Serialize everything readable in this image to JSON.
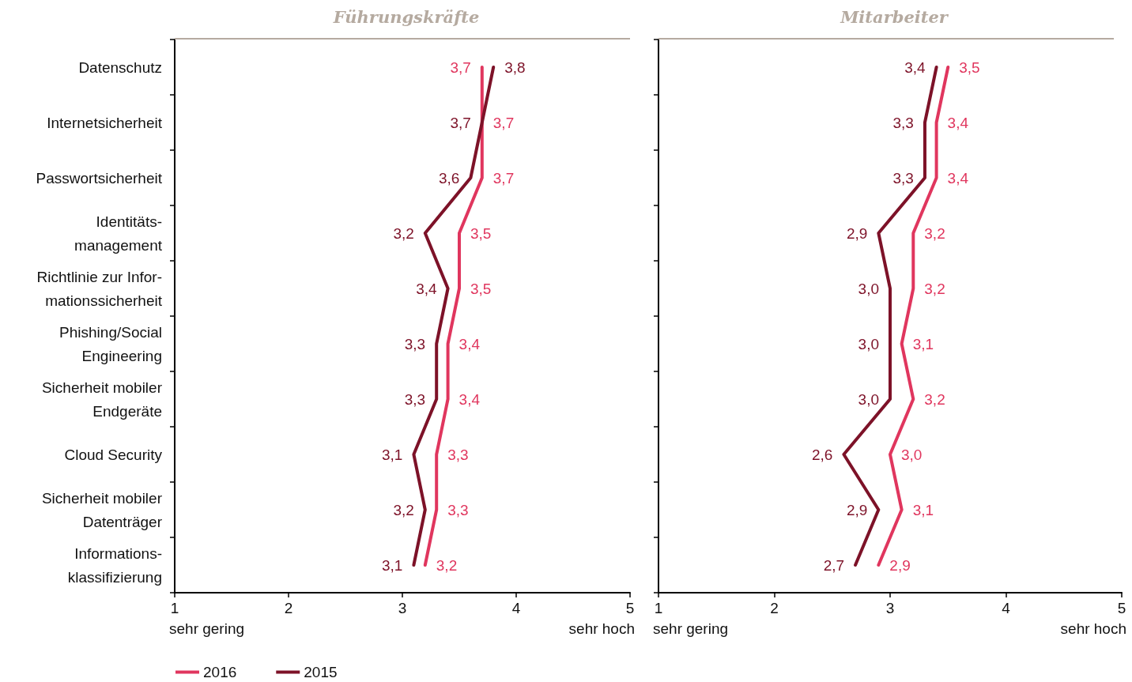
{
  "chart_data": [
    {
      "type": "line",
      "orientation": "horizontal",
      "title": "Führungskräfte",
      "categories": [
        "Datenschutz",
        "Internetsicherheit",
        "Passwortsicherheit",
        "Identitäts-\nmanagement",
        "Richtlinie zur Infor-\nmationssicherheit",
        "Phishing/Social\nEngineering",
        "Sicherheit mobiler\nEndgeräte",
        "Cloud Security",
        "Sicherheit mobiler\nDatenträger",
        "Informations-\nklassifizierung"
      ],
      "series": [
        {
          "name": "2016",
          "color": "#e0365e",
          "values": [
            3.7,
            3.7,
            3.7,
            3.5,
            3.5,
            3.4,
            3.4,
            3.3,
            3.3,
            3.2
          ],
          "value_labels": [
            "3,7",
            "3,7",
            "3,7",
            "3,5",
            "3,5",
            "3,4",
            "3,4",
            "3,3",
            "3,3",
            "3,2"
          ]
        },
        {
          "name": "2015",
          "color": "#7d1228",
          "values": [
            3.8,
            3.7,
            3.6,
            3.2,
            3.4,
            3.3,
            3.3,
            3.1,
            3.2,
            3.1
          ],
          "value_labels": [
            "3,8",
            "3,7",
            "3,6",
            "3,2",
            "3,4",
            "3,3",
            "3,3",
            "3,1",
            "3,2",
            "3,1"
          ]
        }
      ],
      "xlim": [
        1,
        5
      ],
      "xticks": [
        1,
        2,
        3,
        4,
        5
      ],
      "annotations": [
        "sehr gering",
        "sehr hoch"
      ],
      "legend": "bottom left",
      "grid": false,
      "marker": "none",
      "line_style": "solid"
    },
    {
      "type": "line",
      "orientation": "horizontal",
      "title": "Mitarbeiter",
      "categories": [
        null,
        null,
        null,
        null,
        null,
        null,
        null,
        null,
        null,
        null
      ],
      "series": [
        {
          "name": "2016",
          "color": "#e0365e",
          "values": [
            3.5,
            3.4,
            3.4,
            3.2,
            3.2,
            3.1,
            3.2,
            3.0,
            3.1,
            2.9
          ],
          "value_labels": [
            "3,5",
            "3,4",
            "3,4",
            "3,2",
            "3,2",
            "3,1",
            "3,2",
            "3,0",
            "3,1",
            "2,9"
          ]
        },
        {
          "name": "2015",
          "color": "#7d1228",
          "values": [
            3.4,
            3.3,
            3.3,
            2.9,
            3.0,
            3.0,
            3.0,
            2.6,
            2.9,
            2.7
          ],
          "value_labels": [
            "3,4",
            "3,3",
            "3,3",
            "2,9",
            "3,0",
            "3,0",
            "3,0",
            "2,6",
            "2,9",
            "2,7"
          ]
        }
      ],
      "xlim": [
        1,
        5
      ],
      "xticks": [
        1,
        2,
        3,
        4,
        5
      ],
      "annotations": [
        "sehr gering",
        "sehr hoch"
      ],
      "tick_labels": "x",
      "legend": false,
      "grid": false,
      "marker": "none",
      "line_style": "solid"
    }
  ]
}
